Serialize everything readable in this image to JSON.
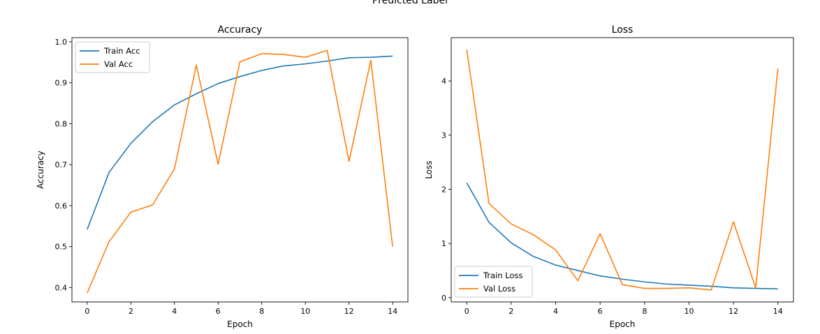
{
  "figure": {
    "suptitle": "Predicted Label"
  },
  "chart_data": [
    {
      "type": "line",
      "title": "Accuracy",
      "xlabel": "Epoch",
      "ylabel": "Accuracy",
      "xlim": [
        -0.7,
        14.7
      ],
      "ylim": [
        0.365,
        1.01
      ],
      "xticks": [
        0,
        2,
        4,
        6,
        8,
        10,
        12,
        14
      ],
      "yticks": [
        0.4,
        0.5,
        0.6,
        0.7,
        0.8,
        0.9,
        1.0
      ],
      "ytick_labels": [
        "0.4",
        "0.5",
        "0.6",
        "0.7",
        "0.8",
        "0.9",
        "1.0"
      ],
      "legend": "upper-left",
      "grid": false,
      "x": [
        0,
        1,
        2,
        3,
        4,
        5,
        6,
        7,
        8,
        9,
        10,
        11,
        12,
        13,
        14
      ],
      "series": [
        {
          "name": "Train Acc",
          "color": "#1f77b4",
          "values": [
            0.542,
            0.681,
            0.752,
            0.805,
            0.846,
            0.873,
            0.898,
            0.915,
            0.93,
            0.941,
            0.946,
            0.953,
            0.961,
            0.962,
            0.965
          ]
        },
        {
          "name": "Val Acc",
          "color": "#ff7f0e",
          "values": [
            0.387,
            0.512,
            0.584,
            0.602,
            0.69,
            0.943,
            0.701,
            0.951,
            0.971,
            0.969,
            0.962,
            0.979,
            0.708,
            0.955,
            0.5
          ]
        }
      ]
    },
    {
      "type": "line",
      "title": "Loss",
      "xlabel": "Epoch",
      "ylabel": "Loss",
      "xlim": [
        -0.7,
        14.7
      ],
      "ylim": [
        -0.08,
        4.8
      ],
      "xticks": [
        0,
        2,
        4,
        6,
        8,
        10,
        12,
        14
      ],
      "yticks": [
        0,
        1,
        2,
        3,
        4
      ],
      "ytick_labels": [
        "0",
        "1",
        "2",
        "3",
        "4"
      ],
      "legend": "lower-left",
      "grid": false,
      "x": [
        0,
        1,
        2,
        3,
        4,
        5,
        6,
        7,
        8,
        9,
        10,
        11,
        12,
        13,
        14
      ],
      "series": [
        {
          "name": "Train Loss",
          "color": "#1f77b4",
          "values": [
            2.12,
            1.39,
            1.01,
            0.76,
            0.6,
            0.5,
            0.4,
            0.34,
            0.29,
            0.25,
            0.23,
            0.21,
            0.18,
            0.17,
            0.16
          ]
        },
        {
          "name": "Val Loss",
          "color": "#ff7f0e",
          "values": [
            4.58,
            1.74,
            1.36,
            1.16,
            0.88,
            0.31,
            1.18,
            0.24,
            0.17,
            0.17,
            0.18,
            0.14,
            1.4,
            0.18,
            4.23
          ]
        }
      ]
    }
  ]
}
